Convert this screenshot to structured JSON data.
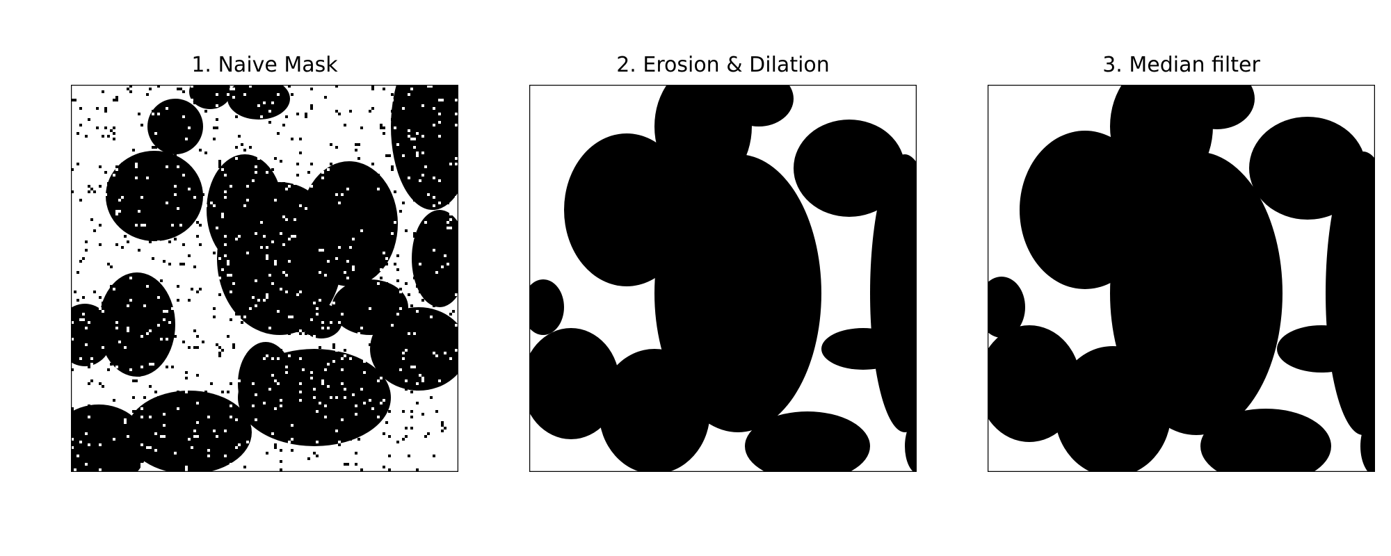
{
  "panels": [
    {
      "title": "1. Naive Mask",
      "kind": "naive"
    },
    {
      "title": "2. Erosion & Dilation",
      "kind": "morph"
    },
    {
      "title": "3. Median filter",
      "kind": "median"
    }
  ],
  "colors": {
    "foreground": "#ffffff",
    "background": "#000000",
    "frame": "#000000"
  }
}
